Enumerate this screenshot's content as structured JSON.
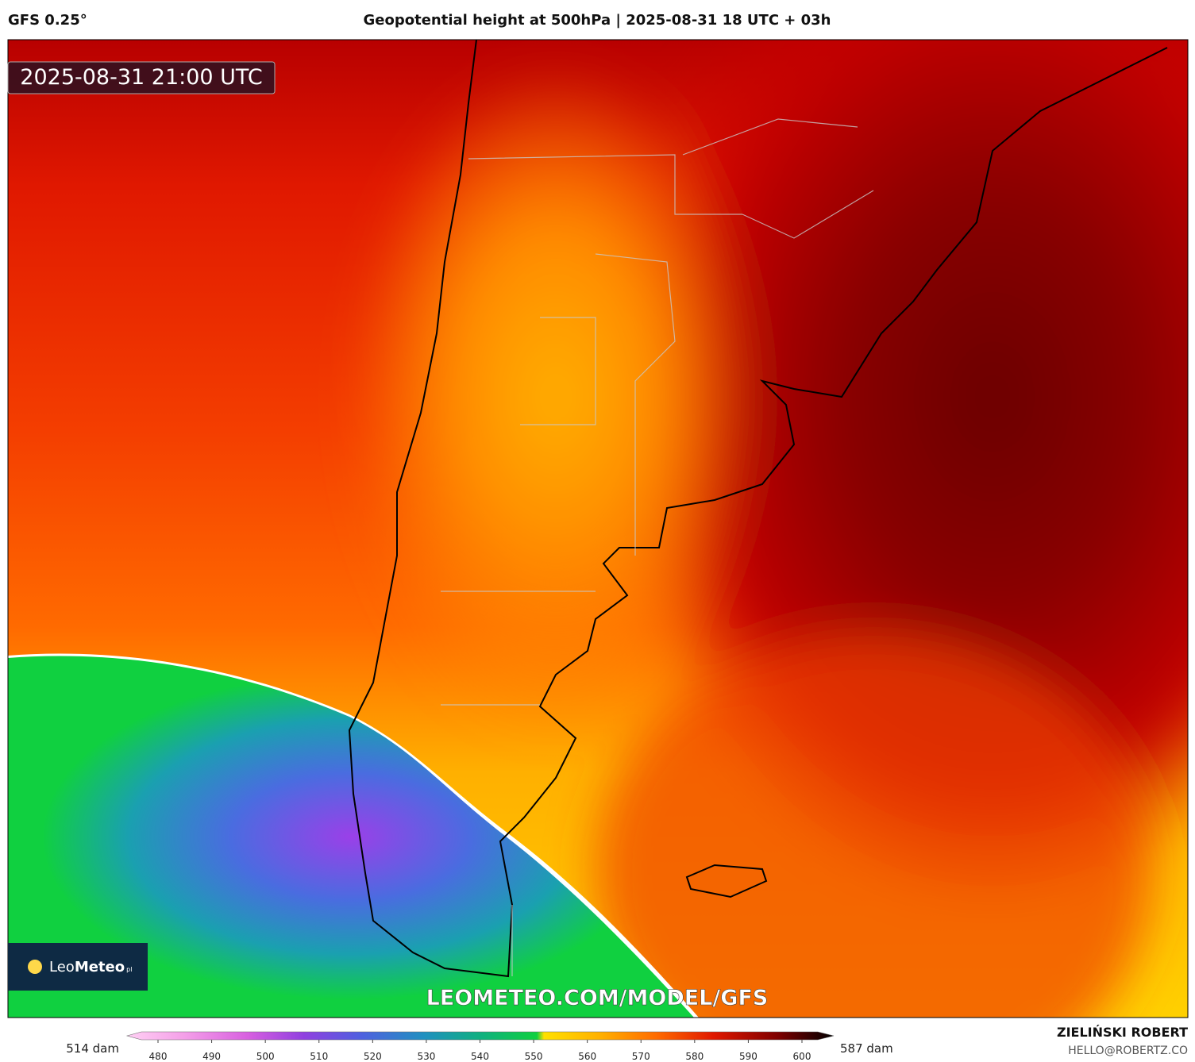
{
  "header": {
    "model": "GFS 0.25°",
    "title": "Geopotential height at 500hPa | 2025-08-31 18 UTC + 03h"
  },
  "map": {
    "timestamp": "2025-08-31 21:00 UTC",
    "logo_a": "Leo",
    "logo_b": "Meteo",
    "logo_suffix": "pl",
    "watermark": "LEOMETEO.COM/MODEL/GFS"
  },
  "colorbar": {
    "min_label": "514 dam",
    "max_label": "587 dam",
    "ticks": [
      480,
      490,
      500,
      510,
      520,
      530,
      540,
      550,
      560,
      570,
      580,
      590,
      600
    ]
  },
  "credits": {
    "author": "ZIELIŃSKI ROBERT",
    "contact": "HELLO@ROBERTZ.CO"
  }
}
